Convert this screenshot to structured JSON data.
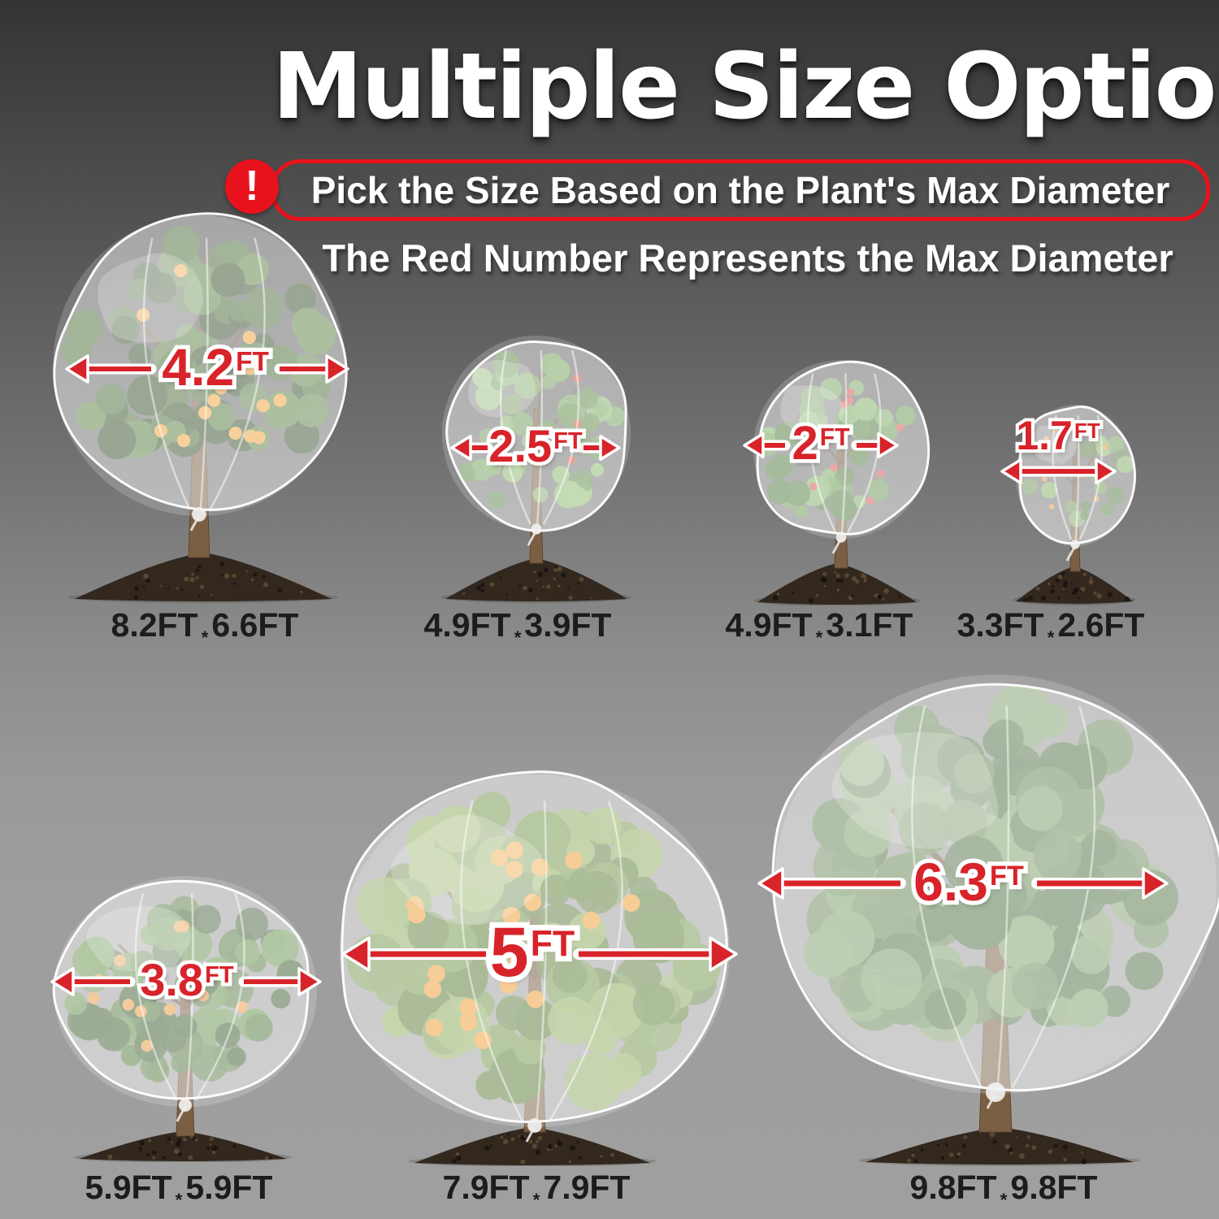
{
  "header": {
    "title": "Multiple Size Options",
    "warn_glyph": "!",
    "banner": "Pick the Size Based on the Plant's Max Diameter",
    "subtitle": "The Red Number Represents the Max Diameter"
  },
  "colors": {
    "background_top": "#343434",
    "background_bottom": "#9e9e9e",
    "accent_red": "#e8121d",
    "measure_red": "#d8232a",
    "label_text": "#1c1c1c",
    "mesh_white": "rgba(255,255,255,0.4)",
    "soil_brown": "#33281e"
  },
  "plants": [
    {
      "name": "covered-orange-tree",
      "max_diameter": "4.2",
      "unit": "FT",
      "size": {
        "d1": "8.2FT",
        "sep": "*",
        "d2": "6.6FT"
      },
      "fruit": "oranges",
      "fruit_color": "#f1a33b",
      "foliage_colors": [
        "#35502a",
        "#4b6e38",
        "#5d8445"
      ]
    },
    {
      "name": "covered-tomato-plant",
      "max_diameter": "2.5",
      "unit": "FT",
      "size": {
        "d1": "4.9FT",
        "sep": "*",
        "d2": "3.9FT"
      },
      "fruit": "tomatoes",
      "fruit_color": "#cc4b37",
      "foliage_colors": [
        "#5d8a43",
        "#74a558",
        "#8bbb6d"
      ]
    },
    {
      "name": "covered-red-fruit-plant",
      "max_diameter": "2",
      "unit": "FT",
      "size": {
        "d1": "4.9FT",
        "sep": "*",
        "d2": "3.1FT"
      },
      "fruit": "red-fruits",
      "fruit_color": "#d45a52",
      "foliage_colors": [
        "#4f7b3c",
        "#699a50",
        "#7fb065"
      ]
    },
    {
      "name": "covered-small-plant",
      "max_diameter": "1.7",
      "unit": "FT",
      "size": {
        "d1": "3.3FT",
        "sep": "*",
        "d2": "2.6FT"
      },
      "fruit": "small-oranges",
      "fruit_color": "#e6993f",
      "foliage_colors": [
        "#567e41",
        "#6f9c55",
        "#86b169"
      ]
    },
    {
      "name": "covered-bush",
      "max_diameter": "3.8",
      "unit": "FT",
      "size": {
        "d1": "5.9FT",
        "sep": "*",
        "d2": "5.9FT"
      },
      "fruit": "oranges",
      "fruit_color": "#e89a41",
      "foliage_colors": [
        "#3c5c2e",
        "#52793c",
        "#67934b"
      ]
    },
    {
      "name": "covered-citrus-tree",
      "max_diameter": "5",
      "unit": "FT",
      "size": {
        "d1": "7.9FT",
        "sep": "*",
        "d2": "7.9FT"
      },
      "fruit": "oranges",
      "fruit_color": "#ef9d33",
      "foliage_colors": [
        "#5a7b35",
        "#73974a",
        "#8fae5c"
      ]
    },
    {
      "name": "covered-large-tree",
      "max_diameter": "6.3",
      "unit": "FT",
      "size": {
        "d1": "9.8FT",
        "sep": "*",
        "d2": "9.8FT"
      },
      "fruit": "none",
      "fruit_color": "",
      "foliage_colors": [
        "#4e6f42",
        "#668755",
        "#7fa06b"
      ]
    }
  ]
}
